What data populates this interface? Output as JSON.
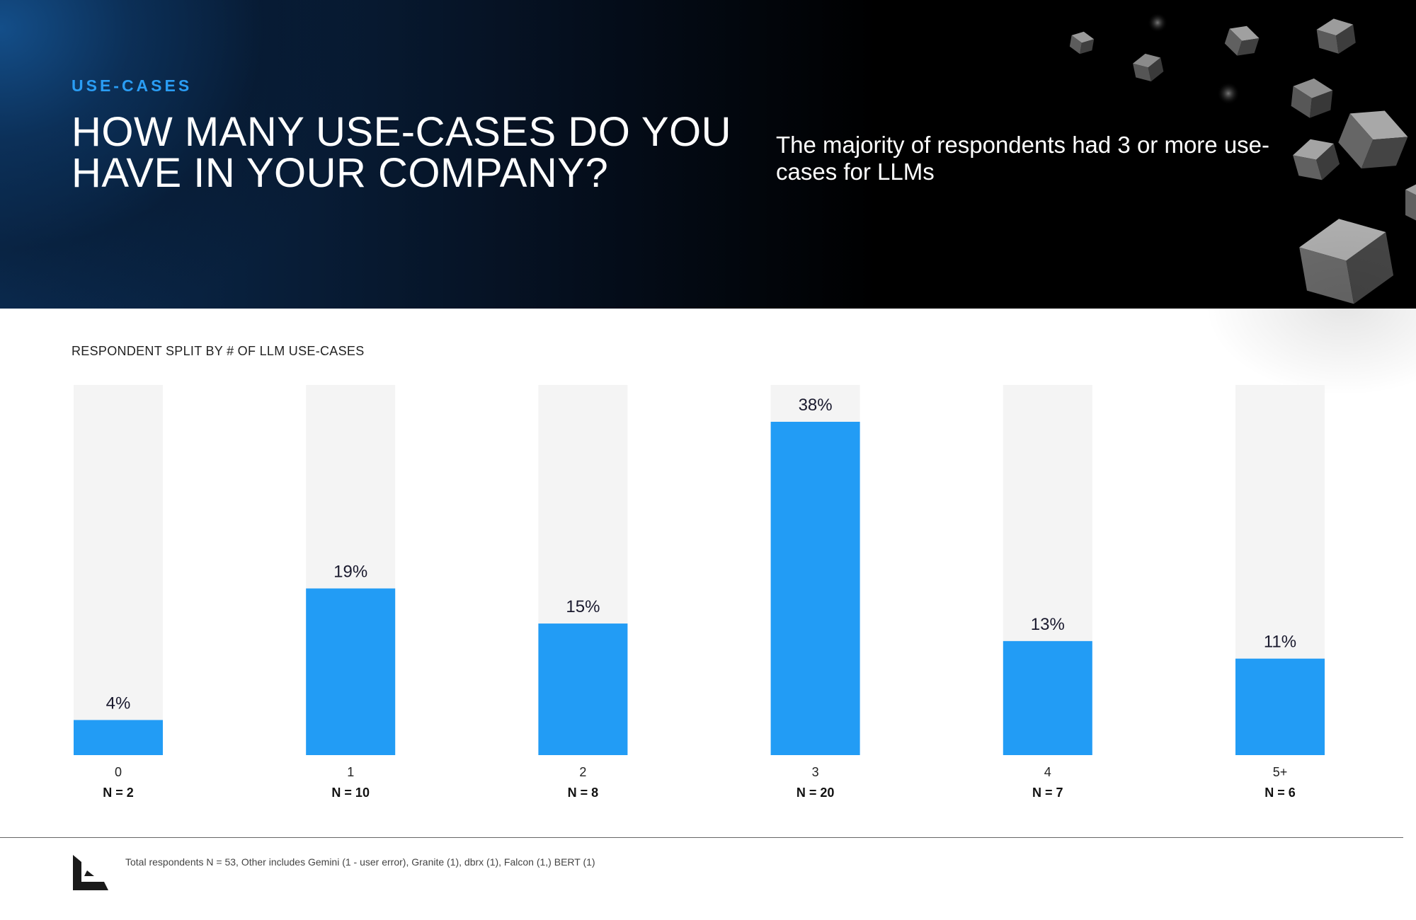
{
  "header": {
    "eyebrow": "USE-CASES",
    "title": "HOW MANY USE-CASES DO YOU HAVE IN YOUR COMPANY?",
    "subtitle": "The majority of respondents had 3 or more use-cases for LLMs"
  },
  "chart_data": {
    "type": "bar",
    "title": "RESPONDENT SPLIT BY # OF LLM USE-CASES",
    "xlabel": "",
    "ylabel": "",
    "ylim": [
      0,
      100
    ],
    "categories": [
      "0",
      "1",
      "2",
      "3",
      "4",
      "5+"
    ],
    "values": [
      4,
      19,
      15,
      38,
      13,
      11
    ],
    "value_labels": [
      "4%",
      "19%",
      "15%",
      "38%",
      "13%",
      "11%"
    ],
    "counts": [
      "N = 2",
      "N = 10",
      "N = 8",
      "N = 20",
      "N = 7",
      "N = 6"
    ],
    "grid": false,
    "legend": "none"
  },
  "colors": {
    "bar": "#229cf5",
    "track": "#f4f4f4",
    "accent": "#2a9df4"
  },
  "icons": {
    "logo": "l-logo-icon",
    "decoration": "floating-cubes-icon"
  },
  "footer": {
    "note": "Total respondents N = 53, Other includes Gemini (1 - user error), Granite (1), dbrx (1), Falcon (1,) BERT (1)"
  }
}
